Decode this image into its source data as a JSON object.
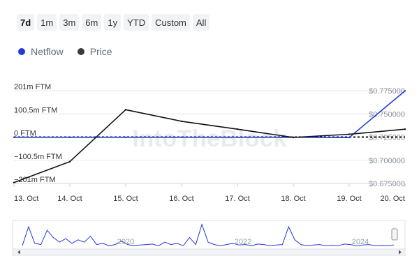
{
  "range_buttons": [
    {
      "label": "7d",
      "active": true
    },
    {
      "label": "1m",
      "active": false
    },
    {
      "label": "3m",
      "active": false
    },
    {
      "label": "6m",
      "active": false
    },
    {
      "label": "1y",
      "active": false
    },
    {
      "label": "YTD",
      "active": false
    },
    {
      "label": "Custom",
      "active": false
    },
    {
      "label": "All",
      "active": false
    }
  ],
  "legend": [
    {
      "label": "Netflow",
      "color": "#1f3bd6"
    },
    {
      "label": "Price",
      "color": "#3a3a3a"
    }
  ],
  "watermark": "IntoTheBlock",
  "chart_data": {
    "type": "line",
    "categories": [
      "13. Oct",
      "14. Oct",
      "15. Oct",
      "16. Oct",
      "17. Oct",
      "18. Oct",
      "19. Oct",
      "20. Oct"
    ],
    "y_left": {
      "ticks": [
        "201m FTM",
        "100.5m FTM",
        "0 FTM",
        "−100.5m FTM",
        "−201m FTM"
      ],
      "range": [
        -201,
        201
      ],
      "unit": "m FTM"
    },
    "y_right": {
      "ticks": [
        "$0.775000",
        "$0.750000",
        "$0.725000",
        "$0.700000",
        "$0.675000"
      ],
      "range": [
        0.675,
        0.775
      ]
    },
    "series": [
      {
        "name": "Netflow",
        "axis": "left",
        "color": "#1f3bd6",
        "x": [
          0,
          1,
          2,
          3,
          4,
          5,
          6,
          7
        ],
        "values": [
          -1,
          -1,
          -1,
          -1,
          -1,
          -1,
          -2,
          200
        ]
      },
      {
        "name": "Price",
        "axis": "right",
        "color": "#111111",
        "x": [
          0,
          1,
          2,
          3,
          4,
          5,
          6,
          7
        ],
        "values": [
          0.676,
          0.6985,
          0.7545,
          0.742,
          0.7335,
          0.7246,
          0.728,
          0.7335
        ]
      }
    ],
    "reference_line": {
      "axis": "left",
      "value": 0,
      "style": "dashed"
    },
    "grid": true,
    "navigator": {
      "years": [
        "2020",
        "2022",
        "2024"
      ],
      "spike_heights": [
        0.05,
        0.85,
        0.15,
        0.1,
        0.7,
        0.4,
        0.2,
        0.35,
        0.15,
        0.3,
        0.2,
        0.45,
        0.1,
        0.15,
        0.05,
        0.1,
        0.25,
        0.1,
        0.05,
        0.08,
        0.1,
        0.12,
        0.05,
        0.2,
        0.1,
        0.15,
        0.05,
        0.4,
        0.1,
        0.95,
        0.2,
        0.1,
        0.05,
        0.1,
        0.15,
        0.08,
        0.1,
        0.05,
        0.12,
        0.1,
        0.05,
        0.08,
        0.1,
        0.85,
        0.3,
        0.1,
        0.05,
        0.08,
        0.1,
        0.05,
        0.07,
        0.05,
        0.12,
        0.1,
        0.05,
        0.08,
        0.1,
        0.05,
        0.06,
        0.05,
        0.08
      ]
    }
  }
}
